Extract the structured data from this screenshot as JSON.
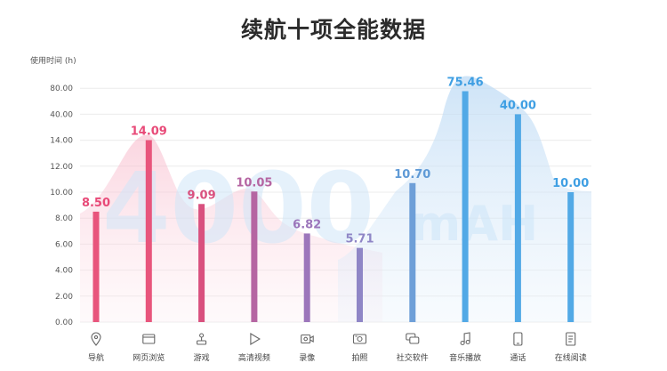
{
  "title": "续航十项全能数据",
  "watermark": {
    "number": "4000",
    "unit": "mAH"
  },
  "chart_data": {
    "type": "bar",
    "title": "续航十项全能数据",
    "ylabel": "使用时间 (h)",
    "xlabel": "",
    "yticks": [
      "0.00",
      "2.00",
      "4.00",
      "6.00",
      "8.00",
      "10.00",
      "12.00",
      "14.00",
      "40.00",
      "80.00"
    ],
    "categories": [
      "导航",
      "网页浏览",
      "游戏",
      "高清视频",
      "录像",
      "拍照",
      "社交软件",
      "音乐播放",
      "通话",
      "在线阅读"
    ],
    "values": [
      8.5,
      14.09,
      9.09,
      10.05,
      6.82,
      5.71,
      10.7,
      75.46,
      40.0,
      10.0
    ],
    "value_labels": [
      "8.50",
      "14.09",
      "9.09",
      "10.05",
      "6.82",
      "5.71",
      "10.70",
      "75.46",
      "40.00",
      "10.00"
    ],
    "icons": [
      "location-pin-icon",
      "browser-window-icon",
      "joystick-icon",
      "play-icon",
      "video-camera-icon",
      "photo-icon",
      "chat-bubbles-icon",
      "music-note-icon",
      "phone-icon",
      "document-icon"
    ],
    "colors": [
      "#e8557c",
      "#e8557c",
      "#d9507e",
      "#b565a2",
      "#9c76bb",
      "#8f86c6",
      "#6e9fd8",
      "#52a9e6",
      "#52a9e6",
      "#52a9e6"
    ],
    "label_colors": [
      "#e84a78",
      "#e84a78",
      "#d9507e",
      "#b565a2",
      "#9c76bb",
      "#8f86c6",
      "#5f9ad6",
      "#3f9fe3",
      "#3f9fe3",
      "#3f9fe3"
    ],
    "grid": true,
    "legend": "none"
  }
}
